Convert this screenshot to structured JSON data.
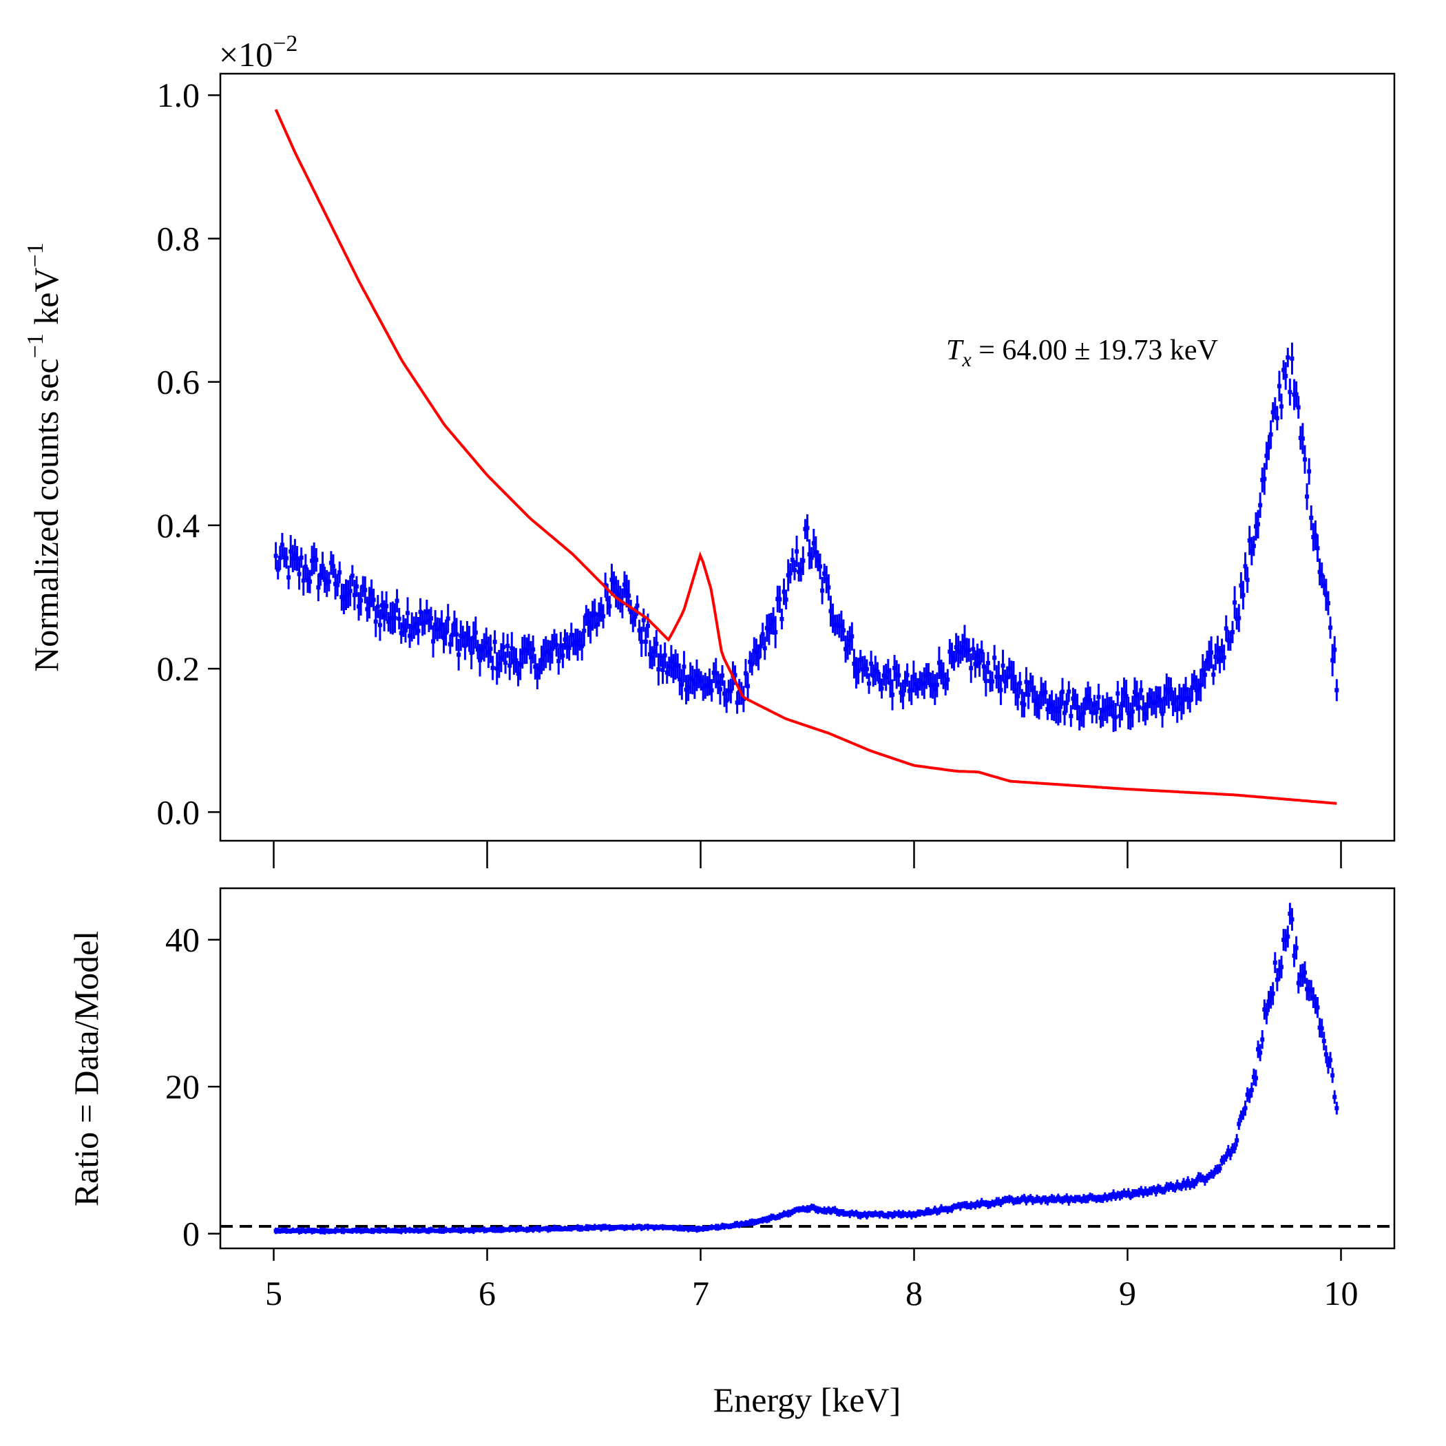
{
  "chart_data": [
    {
      "type": "line",
      "panel": "spectrum",
      "ylabel": "Normalized counts sec",
      "ylabel_sup1": "−1",
      "ylabel_mid": " keV",
      "ylabel_sup2": "−1",
      "offset_text": "×10",
      "offset_exp": "−2",
      "annotation": {
        "symbol": "T",
        "subscript": "x",
        "text": " = 64.00 ± 19.73 keV"
      },
      "xlim": [
        4.75,
        10.25
      ],
      "ylim": [
        -0.04,
        1.03
      ],
      "x_ticks": [
        5,
        6,
        7,
        8,
        9,
        10
      ],
      "y_ticks": [
        0.0,
        0.2,
        0.4,
        0.6,
        0.8,
        1.0
      ],
      "y_tick_labels": [
        "0.0",
        "0.2",
        "0.4",
        "0.6",
        "0.8",
        "1.0"
      ],
      "series": [
        {
          "kind": "data-with-errorbars",
          "color": "#0000ff",
          "x_range": [
            5.01,
            9.98
          ],
          "points_approx": [
            [
              5.0,
              0.35
            ],
            [
              5.25,
              0.33
            ],
            [
              5.5,
              0.28
            ],
            [
              5.75,
              0.26
            ],
            [
              6.0,
              0.22
            ],
            [
              6.25,
              0.21
            ],
            [
              6.5,
              0.26
            ],
            [
              6.6,
              0.33
            ],
            [
              6.8,
              0.21
            ],
            [
              7.0,
              0.18
            ],
            [
              7.2,
              0.17
            ],
            [
              7.35,
              0.27
            ],
            [
              7.5,
              0.38
            ],
            [
              7.6,
              0.3
            ],
            [
              7.75,
              0.2
            ],
            [
              8.0,
              0.17
            ],
            [
              8.25,
              0.22
            ],
            [
              8.5,
              0.17
            ],
            [
              8.75,
              0.15
            ],
            [
              9.0,
              0.15
            ],
            [
              9.3,
              0.16
            ],
            [
              9.45,
              0.23
            ],
            [
              9.55,
              0.32
            ],
            [
              9.65,
              0.48
            ],
            [
              9.75,
              0.64
            ],
            [
              9.85,
              0.45
            ],
            [
              9.93,
              0.3
            ],
            [
              9.98,
              0.19
            ]
          ]
        },
        {
          "kind": "model",
          "color": "#ff0000",
          "points": [
            [
              5.01,
              0.98
            ],
            [
              5.1,
              0.92
            ],
            [
              5.25,
              0.83
            ],
            [
              5.4,
              0.74
            ],
            [
              5.6,
              0.63
            ],
            [
              5.8,
              0.54
            ],
            [
              6.0,
              0.47
            ],
            [
              6.2,
              0.41
            ],
            [
              6.4,
              0.36
            ],
            [
              6.5,
              0.33
            ],
            [
              6.6,
              0.3
            ],
            [
              6.75,
              0.27
            ],
            [
              6.85,
              0.24
            ],
            [
              6.92,
              0.28
            ],
            [
              7.0,
              0.36
            ],
            [
              7.05,
              0.31
            ],
            [
              7.1,
              0.22
            ],
            [
              7.2,
              0.16
            ],
            [
              7.4,
              0.13
            ],
            [
              7.6,
              0.11
            ],
            [
              7.8,
              0.085
            ],
            [
              8.0,
              0.065
            ],
            [
              8.2,
              0.057
            ],
            [
              8.3,
              0.056
            ],
            [
              8.45,
              0.043
            ],
            [
              8.7,
              0.038
            ],
            [
              9.0,
              0.032
            ],
            [
              9.5,
              0.024
            ],
            [
              9.98,
              0.012
            ]
          ]
        }
      ]
    },
    {
      "type": "line",
      "panel": "ratio",
      "ylabel": "Ratio = Data/Model",
      "xlabel": "Energy [keV]",
      "xlim": [
        4.75,
        10.25
      ],
      "ylim": [
        -2,
        47
      ],
      "x_ticks": [
        5,
        6,
        7,
        8,
        9,
        10
      ],
      "x_tick_labels": [
        "5",
        "6",
        "7",
        "8",
        "9",
        "10"
      ],
      "y_ticks": [
        0,
        20,
        40
      ],
      "y_tick_labels": [
        "0",
        "20",
        "40"
      ],
      "reference_line": {
        "y": 1,
        "style": "dashed",
        "color": "#000000"
      },
      "series": [
        {
          "kind": "data-with-errorbars",
          "color": "#0000ff",
          "points_approx": [
            [
              5.0,
              0.4
            ],
            [
              5.5,
              0.4
            ],
            [
              6.0,
              0.5
            ],
            [
              6.5,
              0.8
            ],
            [
              6.75,
              0.9
            ],
            [
              7.0,
              0.6
            ],
            [
              7.25,
              1.5
            ],
            [
              7.5,
              3.5
            ],
            [
              7.75,
              2.6
            ],
            [
              8.0,
              2.6
            ],
            [
              8.25,
              3.9
            ],
            [
              8.5,
              4.6
            ],
            [
              8.75,
              4.7
            ],
            [
              9.0,
              5.3
            ],
            [
              9.25,
              6.5
            ],
            [
              9.4,
              8.0
            ],
            [
              9.5,
              12.0
            ],
            [
              9.55,
              17.0
            ],
            [
              9.6,
              22.0
            ],
            [
              9.65,
              31.0
            ],
            [
              9.72,
              38.0
            ],
            [
              9.76,
              43.0
            ],
            [
              9.8,
              36.0
            ],
            [
              9.85,
              33.0
            ],
            [
              9.9,
              29.0
            ],
            [
              9.95,
              23.0
            ],
            [
              9.98,
              17.0
            ]
          ]
        }
      ]
    }
  ]
}
